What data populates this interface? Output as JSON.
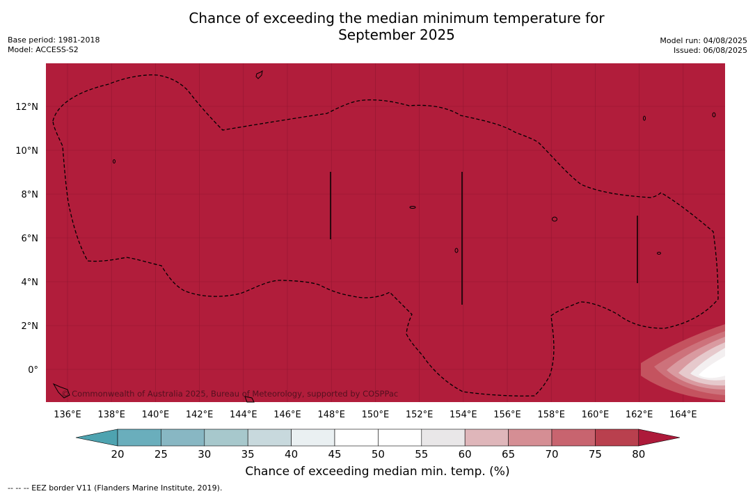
{
  "title_line1": "Chance of exceeding the median minimum temperature for",
  "title_line2": "September 2025",
  "meta_left": [
    "Base period: 1981-2018",
    "Model: ACCESS-S2"
  ],
  "meta_right": [
    "Model run: 04/08/2025",
    "Issued: 06/08/2025"
  ],
  "copyright": "© Commonwealth of Australia 2025, Bureau of Meteorology, supported by COSPPac",
  "lon_ticks": [
    "136°E",
    "138°E",
    "140°E",
    "142°E",
    "144°E",
    "146°E",
    "148°E",
    "150°E",
    "152°E",
    "154°E",
    "156°E",
    "158°E",
    "160°E",
    "162°E",
    "164°E"
  ],
  "lat_ticks": [
    "12°N",
    "10°N",
    "8°N",
    "6°N",
    "4°N",
    "2°N",
    "0°"
  ],
  "colorbar": {
    "label": "Chance of exceeding median min. temp. (%)",
    "ticks": [
      "20",
      "25",
      "30",
      "35",
      "40",
      "45",
      "50",
      "55",
      "60",
      "65",
      "70",
      "75",
      "80"
    ],
    "colors": [
      "#6aaebc",
      "#88b7c3",
      "#a7c8cc",
      "#c8d9dd",
      "#eaf0f2",
      "#ffffff",
      "#ffffff",
      "#e9e7e8",
      "#dfb6ba",
      "#d58e94",
      "#c8646f",
      "#b9404e"
    ],
    "low_extend_color": "#4ea3b0",
    "high_extend_color": "#ad1a3a"
  },
  "map_fill_color": "#b11d3b",
  "eez_note": "-- -- -- EEZ border V11 (Flanders Marine Institute, 2019)."
}
